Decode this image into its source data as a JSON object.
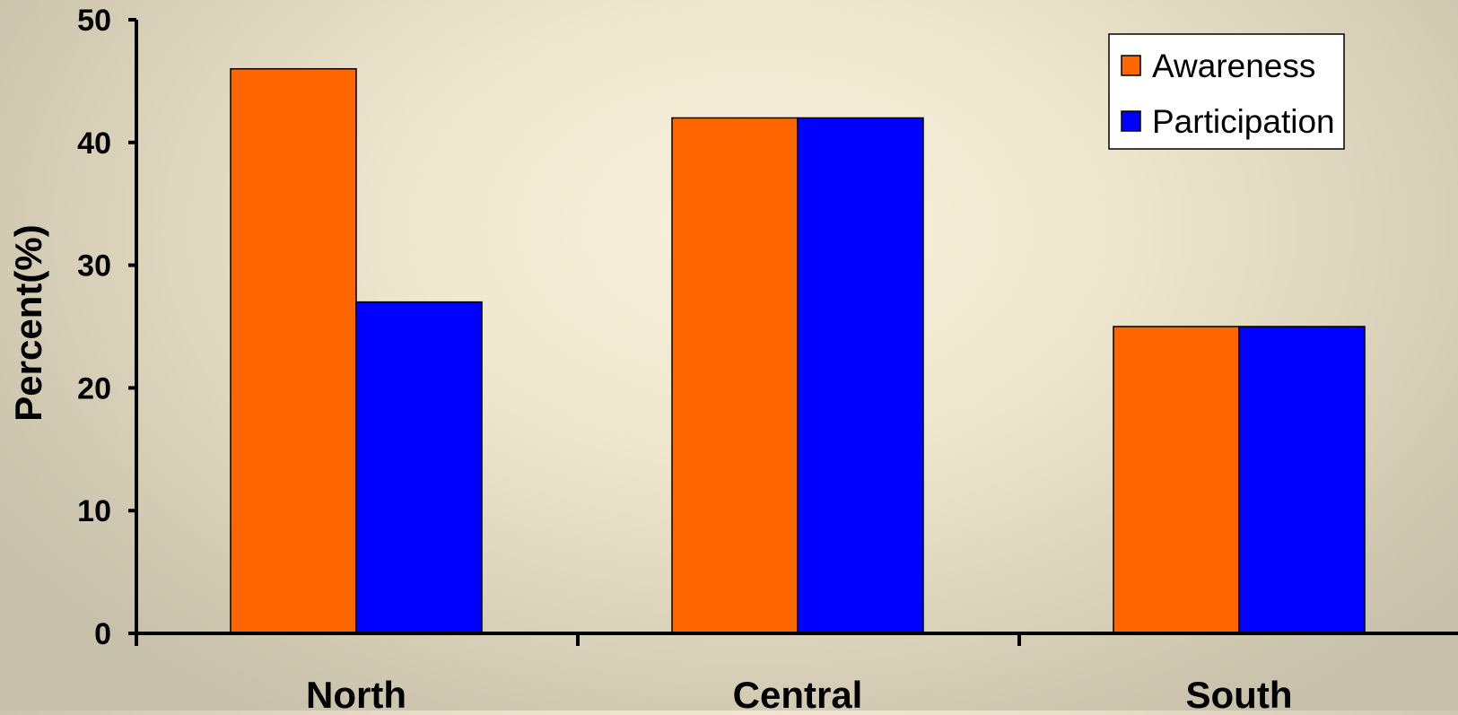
{
  "chart_data": {
    "type": "bar",
    "categories": [
      "North",
      "Central",
      "South"
    ],
    "series": [
      {
        "name": "Awareness",
        "values": [
          46,
          42,
          25
        ],
        "color": "#ff6600"
      },
      {
        "name": "Participation",
        "values": [
          27,
          42,
          25
        ],
        "color": "#0000ff"
      }
    ],
    "title": "",
    "xlabel": "",
    "ylabel": "Percent(%)",
    "ylim": [
      0,
      50
    ],
    "yticks": [
      0,
      10,
      20,
      30,
      40,
      50
    ],
    "grid": false,
    "legend_position": "top-right"
  }
}
